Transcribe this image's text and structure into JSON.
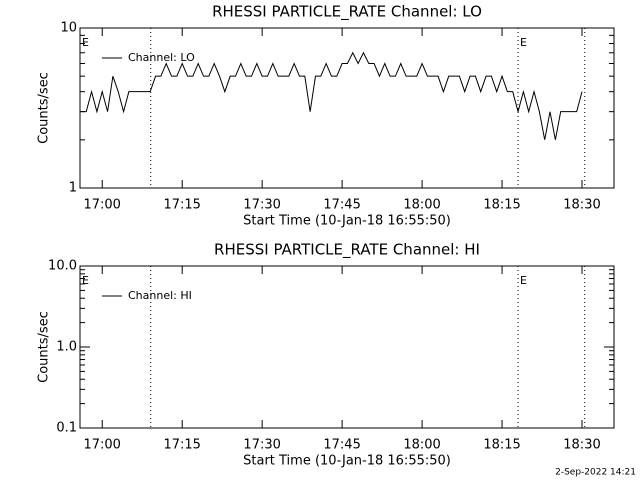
{
  "chart_data": [
    {
      "type": "line",
      "title": "RHESSI PARTICLE_RATE Channel: LO",
      "x_label": "Start Time (10-Jan-18 16:55:50)",
      "y_label": "Counts/sec",
      "log_y": true,
      "legend": "upper left",
      "xlim": [
        1015.83,
        1116
      ],
      "ylim": [
        1,
        10
      ],
      "xticks": [
        {
          "value": 1020,
          "label": "17:00"
        },
        {
          "value": 1035,
          "label": "17:15"
        },
        {
          "value": 1050,
          "label": "17:30"
        },
        {
          "value": 1065,
          "label": "17:45"
        },
        {
          "value": 1080,
          "label": "18:00"
        },
        {
          "value": 1095,
          "label": "18:15"
        },
        {
          "value": 1110,
          "label": "18:30"
        }
      ],
      "yticks": [
        1,
        10
      ],
      "vlines": [
        1029.1,
        1098,
        1110.5
      ],
      "annotations": [
        {
          "text": "E",
          "x": 1015.83
        },
        {
          "text": "E",
          "x": 1098
        }
      ],
      "x": [
        1016,
        1017,
        1018,
        1019,
        1020,
        1021,
        1022,
        1023,
        1024,
        1025,
        1026,
        1027,
        1028,
        1029,
        1030,
        1031,
        1032,
        1033,
        1034,
        1035,
        1036,
        1037,
        1038,
        1039,
        1040,
        1041,
        1042,
        1043,
        1044,
        1045,
        1046,
        1047,
        1048,
        1049,
        1050,
        1051,
        1052,
        1053,
        1054,
        1055,
        1056,
        1057,
        1058,
        1059,
        1060,
        1061,
        1062,
        1063,
        1064,
        1065,
        1066,
        1067,
        1068,
        1069,
        1070,
        1071,
        1072,
        1073,
        1074,
        1075,
        1076,
        1077,
        1078,
        1079,
        1080,
        1081,
        1082,
        1083,
        1084,
        1085,
        1086,
        1087,
        1088,
        1089,
        1090,
        1091,
        1092,
        1093,
        1094,
        1095,
        1096,
        1097,
        1098,
        1099,
        1100,
        1101,
        1102,
        1103,
        1104,
        1105,
        1106,
        1107,
        1108,
        1109,
        1110
      ],
      "series": [
        {
          "name": "Channel: LO",
          "color": "#000000",
          "values": [
            3,
            3,
            4,
            3,
            4,
            3,
            5,
            4,
            3,
            4,
            4,
            4,
            4,
            4,
            5,
            5,
            6,
            5,
            5,
            6,
            5,
            5,
            6,
            5,
            5,
            6,
            5,
            4,
            5,
            5,
            6,
            5,
            5,
            6,
            5,
            5,
            6,
            5,
            5,
            5,
            6,
            5,
            5,
            3,
            5,
            5,
            6,
            5,
            5,
            6,
            6,
            7,
            6,
            7,
            6,
            6,
            5,
            6,
            5,
            5,
            6,
            5,
            5,
            5,
            6,
            5,
            5,
            5,
            4,
            5,
            5,
            5,
            4,
            5,
            5,
            4,
            5,
            5,
            4,
            5,
            4,
            4,
            3,
            4,
            3,
            4,
            3,
            2,
            3,
            2,
            3,
            3,
            3,
            3,
            4
          ]
        }
      ]
    },
    {
      "type": "line",
      "title": "RHESSI PARTICLE_RATE Channel: HI",
      "x_label": "Start Time (10-Jan-18 16:55:50)",
      "y_label": "Counts/sec",
      "log_y": true,
      "legend": "upper left",
      "xlim": [
        1015.83,
        1116
      ],
      "ylim": [
        0.1,
        10
      ],
      "xticks": [
        {
          "value": 1020,
          "label": "17:00"
        },
        {
          "value": 1035,
          "label": "17:15"
        },
        {
          "value": 1050,
          "label": "17:30"
        },
        {
          "value": 1065,
          "label": "17:45"
        },
        {
          "value": 1080,
          "label": "18:00"
        },
        {
          "value": 1095,
          "label": "18:15"
        },
        {
          "value": 1110,
          "label": "18:30"
        }
      ],
      "yticks": [
        0.1,
        {
          "value": 1,
          "label": "1.0"
        },
        {
          "value": 10,
          "label": "10.0"
        }
      ],
      "vlines": [
        1029.1,
        1098,
        1110.5
      ],
      "annotations": [
        {
          "text": "E",
          "x": 1015.83
        },
        {
          "text": "E",
          "x": 1098
        }
      ],
      "x": [],
      "series": [
        {
          "name": "Channel: HI",
          "color": "#000000",
          "values": []
        }
      ]
    }
  ],
  "footer": "2-Sep-2022 14:21"
}
